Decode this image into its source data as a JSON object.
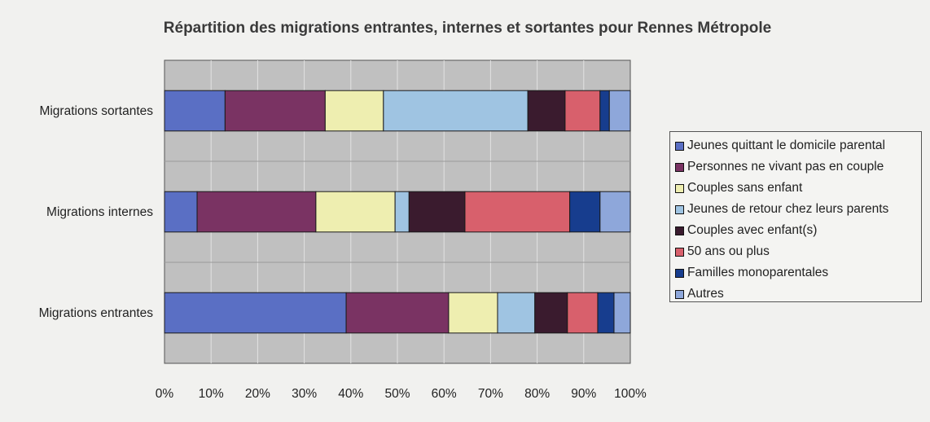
{
  "chart_data": {
    "type": "bar",
    "orientation": "horizontal",
    "stacked": "percent",
    "title": "Répartition des migrations entrantes, internes et sortantes pour Rennes Métropole",
    "categories": [
      "Migrations sortantes",
      "Migrations internes",
      "Migrations entrantes"
    ],
    "x_ticks": [
      "0%",
      "10%",
      "20%",
      "30%",
      "40%",
      "50%",
      "60%",
      "70%",
      "80%",
      "90%",
      "100%"
    ],
    "xlim": [
      0,
      100
    ],
    "grid": true,
    "legend_position": "right",
    "series": [
      {
        "name": "Jeunes quittant le domicile parental",
        "color": "#5a6fc4",
        "values": [
          13,
          7,
          39
        ]
      },
      {
        "name": "Personnes ne vivant pas en couple",
        "color": "#7a3363",
        "values": [
          21.5,
          25.5,
          22
        ]
      },
      {
        "name": "Couples sans enfant",
        "color": "#eeeeb0",
        "values": [
          12.5,
          17,
          10.5
        ]
      },
      {
        "name": "Jeunes de retour chez leurs parents",
        "color": "#9fc4e2",
        "values": [
          31,
          3,
          8
        ]
      },
      {
        "name": "Couples avec enfant(s)",
        "color": "#3a1b2e",
        "values": [
          8,
          12,
          7
        ]
      },
      {
        "name": "50 ans ou plus",
        "color": "#d8606c",
        "values": [
          7.5,
          22.5,
          6.5
        ]
      },
      {
        "name": "Familles monoparentales",
        "color": "#173d8e",
        "values": [
          2,
          6.5,
          3.5
        ]
      },
      {
        "name": "Autres",
        "color": "#8ea7da",
        "values": [
          4.5,
          6.5,
          3.5
        ]
      }
    ]
  }
}
